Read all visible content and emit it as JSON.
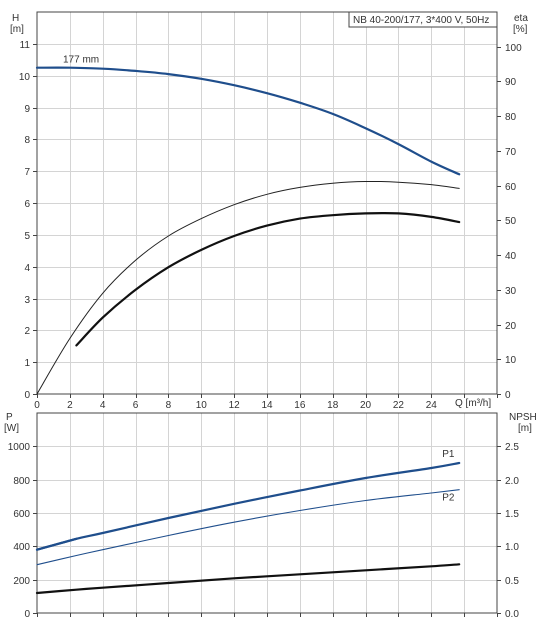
{
  "colors": {
    "blue": "#1f4e8c",
    "black": "#111111",
    "thin_black": "#222222",
    "grid": "#d4d4d4"
  },
  "chart_data": [
    {
      "type": "line",
      "title": "NB 40-200/177, 3*400 V, 50Hz",
      "xlabel": "Q [m³/h]",
      "ylabel_left": "H\n[m]",
      "ylabel_right": "eta\n[%]",
      "xlim": [
        0,
        28
      ],
      "ylim_left": [
        0,
        12
      ],
      "ylim_right": [
        0,
        110
      ],
      "x_ticks": [
        0,
        2,
        4,
        6,
        8,
        10,
        12,
        14,
        16,
        18,
        20,
        22,
        24
      ],
      "y_ticks_left": [
        0,
        1,
        2,
        3,
        4,
        5,
        6,
        7,
        8,
        9,
        10,
        11
      ],
      "y_ticks_right": [
        0,
        10,
        20,
        30,
        40,
        50,
        60,
        70,
        80,
        90,
        100
      ],
      "grid": true,
      "series": [
        {
          "name": "177 mm",
          "axis": "left",
          "color": "#1f4e8c",
          "width": 2.2,
          "x": [
            0,
            2,
            4,
            6,
            8,
            10,
            12,
            14,
            16,
            18,
            20,
            22,
            24,
            25.7
          ],
          "y": [
            10.25,
            10.25,
            10.22,
            10.15,
            10.05,
            9.9,
            9.7,
            9.45,
            9.15,
            8.8,
            8.35,
            7.85,
            7.3,
            6.9
          ]
        },
        {
          "axis": "right",
          "color": "#222222",
          "width": 1,
          "x": [
            0,
            2,
            4,
            6,
            8,
            10,
            12,
            14,
            16,
            18,
            20,
            22,
            24,
            25.7
          ],
          "y": [
            0,
            16,
            29,
            38.5,
            45.5,
            50.5,
            54.5,
            57.5,
            59.5,
            60.7,
            61.2,
            61,
            60.3,
            59.2
          ]
        },
        {
          "axis": "right",
          "color": "#111111",
          "width": 2.2,
          "x": [
            2.4,
            4,
            6,
            8,
            10,
            12,
            14,
            16,
            18,
            20,
            22,
            24,
            25.7
          ],
          "y": [
            14,
            22,
            30,
            36.5,
            41.5,
            45.5,
            48.5,
            50.5,
            51.5,
            52,
            52,
            51,
            49.5
          ]
        }
      ]
    },
    {
      "type": "line",
      "xlabel": "",
      "ylabel_left": "P\n[W]",
      "ylabel_right": "NPSH\n[m]",
      "xlim": [
        0,
        28
      ],
      "ylim_left": [
        0,
        1200
      ],
      "ylim_right": [
        0,
        3
      ],
      "x_ticks": [],
      "y_ticks_left": [
        0,
        200,
        400,
        600,
        800,
        1000
      ],
      "y_ticks_right": [
        0.0,
        0.5,
        1.0,
        1.5,
        2.0,
        2.5
      ],
      "grid": true,
      "series": [
        {
          "name": "P1",
          "axis": "left",
          "color": "#1f4e8c",
          "width": 2.2,
          "x": [
            0,
            2.4,
            4,
            8,
            12,
            16,
            20,
            24,
            25.7
          ],
          "y": [
            380,
            445,
            480,
            570,
            655,
            735,
            810,
            870,
            900
          ]
        },
        {
          "axis": "left",
          "color": "#1f4e8c",
          "width": 2.2,
          "x": [
            0,
            2.4
          ],
          "y": [
            380,
            445
          ]
        },
        {
          "name": "P2",
          "axis": "left",
          "color": "#1f4e8c",
          "width": 1.1,
          "x": [
            0,
            2.4,
            4,
            8,
            12,
            16,
            20,
            24,
            25.7
          ],
          "y": [
            290,
            345,
            380,
            465,
            545,
            615,
            675,
            720,
            740
          ]
        },
        {
          "axis": "right",
          "color": "#111111",
          "width": 2.2,
          "x": [
            0,
            2.4,
            4,
            8,
            12,
            16,
            20,
            24,
            25.7
          ],
          "y": [
            0.3,
            0.35,
            0.38,
            0.45,
            0.52,
            0.58,
            0.64,
            0.7,
            0.73
          ]
        }
      ]
    }
  ]
}
